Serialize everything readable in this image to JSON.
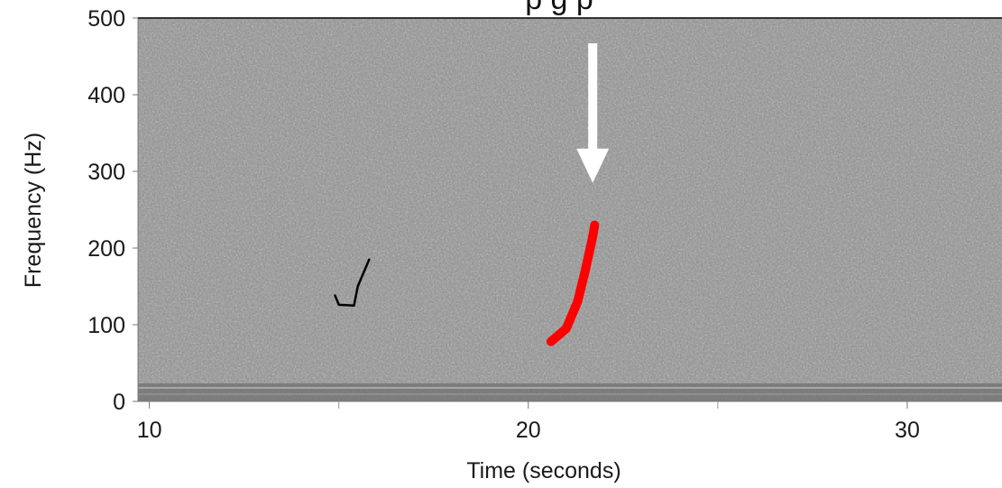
{
  "chart_data": {
    "type": "spectrogram",
    "title_fragment": "p        g        p",
    "xlabel": "Time (seconds)",
    "ylabel": "Frequency (Hz)",
    "xlim": [
      9.7,
      32.5
    ],
    "ylim": [
      0,
      500
    ],
    "x_ticks": [
      10,
      20,
      30
    ],
    "y_ticks": [
      0,
      100,
      200,
      300,
      400,
      500
    ],
    "grid": false,
    "series": [
      {
        "color": "#ff0000",
        "points": [
          [
            20.6,
            78
          ],
          [
            21.0,
            95
          ],
          [
            21.3,
            130
          ],
          [
            21.5,
            170
          ],
          [
            21.7,
            215
          ],
          [
            21.75,
            230
          ]
        ]
      },
      {
        "color": "#000000",
        "points": [
          [
            14.9,
            138
          ],
          [
            15.0,
            126
          ],
          [
            15.4,
            125
          ],
          [
            15.5,
            150
          ],
          [
            15.8,
            185
          ]
        ]
      }
    ],
    "arrow_target": {
      "x": 21.7,
      "y": 285,
      "color": "#ffffff"
    }
  }
}
